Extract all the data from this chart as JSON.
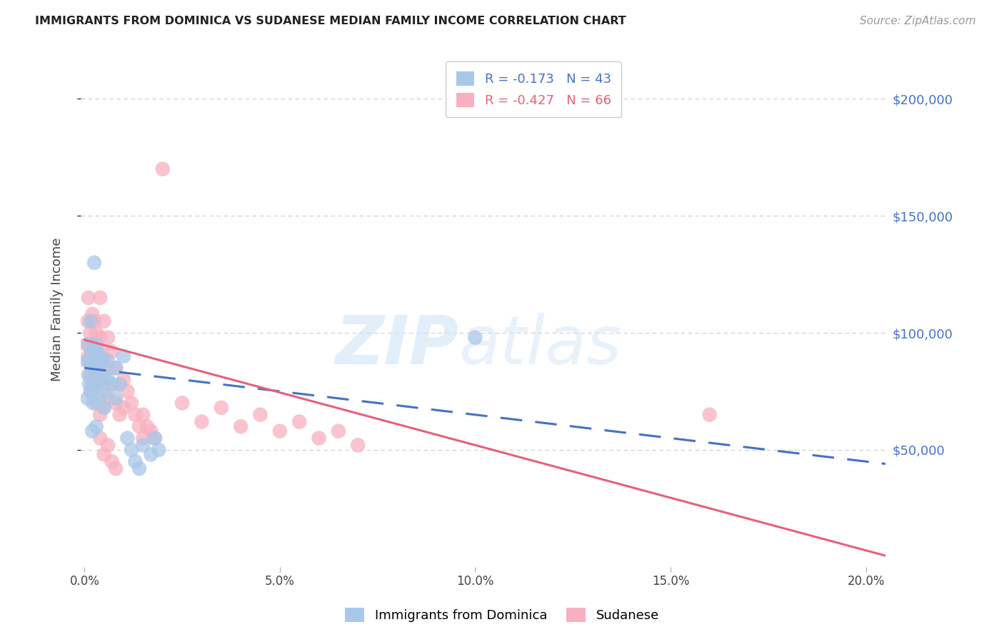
{
  "title": "IMMIGRANTS FROM DOMINICA VS SUDANESE MEDIAN FAMILY INCOME CORRELATION CHART",
  "source": "Source: ZipAtlas.com",
  "ylabel": "Median Family Income",
  "xlabel_ticks": [
    "0.0%",
    "5.0%",
    "10.0%",
    "15.0%",
    "20.0%"
  ],
  "xlabel_vals": [
    0.0,
    0.05,
    0.1,
    0.15,
    0.2
  ],
  "ytick_labels": [
    "$50,000",
    "$100,000",
    "$150,000",
    "$200,000"
  ],
  "ytick_vals": [
    50000,
    100000,
    150000,
    200000
  ],
  "ylim": [
    0,
    220000
  ],
  "xlim": [
    -0.001,
    0.205
  ],
  "dominica_R": -0.173,
  "dominica_N": 43,
  "sudanese_R": -0.427,
  "sudanese_N": 66,
  "watermark_zip": "ZIP",
  "watermark_atlas": "atlas",
  "dominica_line_color": "#4472c4",
  "sudanese_line_color": "#e8607a",
  "dominica_scatter_color": "#a8c8e8",
  "sudanese_scatter_color": "#f8b0c0",
  "background_color": "#ffffff",
  "grid_color": "#cccccc",
  "dominica_scatter": [
    [
      0.0005,
      88000
    ],
    [
      0.0008,
      72000
    ],
    [
      0.001,
      95000
    ],
    [
      0.001,
      82000
    ],
    [
      0.0012,
      78000
    ],
    [
      0.0015,
      105000
    ],
    [
      0.0015,
      88000
    ],
    [
      0.0018,
      75000
    ],
    [
      0.002,
      92000
    ],
    [
      0.002,
      85000
    ],
    [
      0.002,
      78000
    ],
    [
      0.0022,
      70000
    ],
    [
      0.0025,
      130000
    ],
    [
      0.003,
      95000
    ],
    [
      0.003,
      85000
    ],
    [
      0.003,
      78000
    ],
    [
      0.0032,
      92000
    ],
    [
      0.0035,
      85000
    ],
    [
      0.004,
      90000
    ],
    [
      0.004,
      80000
    ],
    [
      0.004,
      72000
    ],
    [
      0.0045,
      88000
    ],
    [
      0.005,
      82000
    ],
    [
      0.005,
      75000
    ],
    [
      0.005,
      68000
    ],
    [
      0.006,
      88000
    ],
    [
      0.006,
      80000
    ],
    [
      0.007,
      78000
    ],
    [
      0.008,
      85000
    ],
    [
      0.008,
      72000
    ],
    [
      0.009,
      78000
    ],
    [
      0.01,
      90000
    ],
    [
      0.011,
      55000
    ],
    [
      0.012,
      50000
    ],
    [
      0.013,
      45000
    ],
    [
      0.014,
      42000
    ],
    [
      0.015,
      52000
    ],
    [
      0.017,
      48000
    ],
    [
      0.018,
      55000
    ],
    [
      0.019,
      50000
    ],
    [
      0.002,
      58000
    ],
    [
      0.003,
      60000
    ],
    [
      0.1,
      98000
    ]
  ],
  "sudanese_scatter": [
    [
      0.0005,
      95000
    ],
    [
      0.0008,
      105000
    ],
    [
      0.001,
      90000
    ],
    [
      0.001,
      115000
    ],
    [
      0.0012,
      88000
    ],
    [
      0.0015,
      100000
    ],
    [
      0.0015,
      82000
    ],
    [
      0.0015,
      75000
    ],
    [
      0.0018,
      92000
    ],
    [
      0.002,
      108000
    ],
    [
      0.002,
      95000
    ],
    [
      0.002,
      82000
    ],
    [
      0.0022,
      78000
    ],
    [
      0.0025,
      105000
    ],
    [
      0.003,
      100000
    ],
    [
      0.003,
      92000
    ],
    [
      0.003,
      85000
    ],
    [
      0.003,
      78000
    ],
    [
      0.003,
      70000
    ],
    [
      0.004,
      115000
    ],
    [
      0.004,
      98000
    ],
    [
      0.004,
      88000
    ],
    [
      0.004,
      78000
    ],
    [
      0.004,
      65000
    ],
    [
      0.0045,
      92000
    ],
    [
      0.005,
      105000
    ],
    [
      0.005,
      88000
    ],
    [
      0.005,
      78000
    ],
    [
      0.005,
      68000
    ],
    [
      0.006,
      98000
    ],
    [
      0.006,
      85000
    ],
    [
      0.006,
      72000
    ],
    [
      0.007,
      92000
    ],
    [
      0.007,
      78000
    ],
    [
      0.008,
      85000
    ],
    [
      0.008,
      70000
    ],
    [
      0.009,
      78000
    ],
    [
      0.009,
      65000
    ],
    [
      0.01,
      80000
    ],
    [
      0.01,
      68000
    ],
    [
      0.011,
      75000
    ],
    [
      0.012,
      70000
    ],
    [
      0.013,
      65000
    ],
    [
      0.014,
      60000
    ],
    [
      0.015,
      65000
    ],
    [
      0.015,
      55000
    ],
    [
      0.016,
      60000
    ],
    [
      0.017,
      58000
    ],
    [
      0.018,
      55000
    ],
    [
      0.02,
      170000
    ],
    [
      0.025,
      70000
    ],
    [
      0.03,
      62000
    ],
    [
      0.035,
      68000
    ],
    [
      0.04,
      60000
    ],
    [
      0.045,
      65000
    ],
    [
      0.05,
      58000
    ],
    [
      0.055,
      62000
    ],
    [
      0.06,
      55000
    ],
    [
      0.065,
      58000
    ],
    [
      0.07,
      52000
    ],
    [
      0.16,
      65000
    ],
    [
      0.004,
      55000
    ],
    [
      0.005,
      48000
    ],
    [
      0.006,
      52000
    ],
    [
      0.007,
      45000
    ],
    [
      0.008,
      42000
    ]
  ],
  "dominica_line_x": [
    0.0,
    0.205
  ],
  "sudanese_line_x": [
    0.0,
    0.205
  ],
  "dominica_line_intercept": 85000,
  "dominica_line_slope": -200000,
  "sudanese_line_intercept": 97000,
  "sudanese_line_slope": -450000
}
